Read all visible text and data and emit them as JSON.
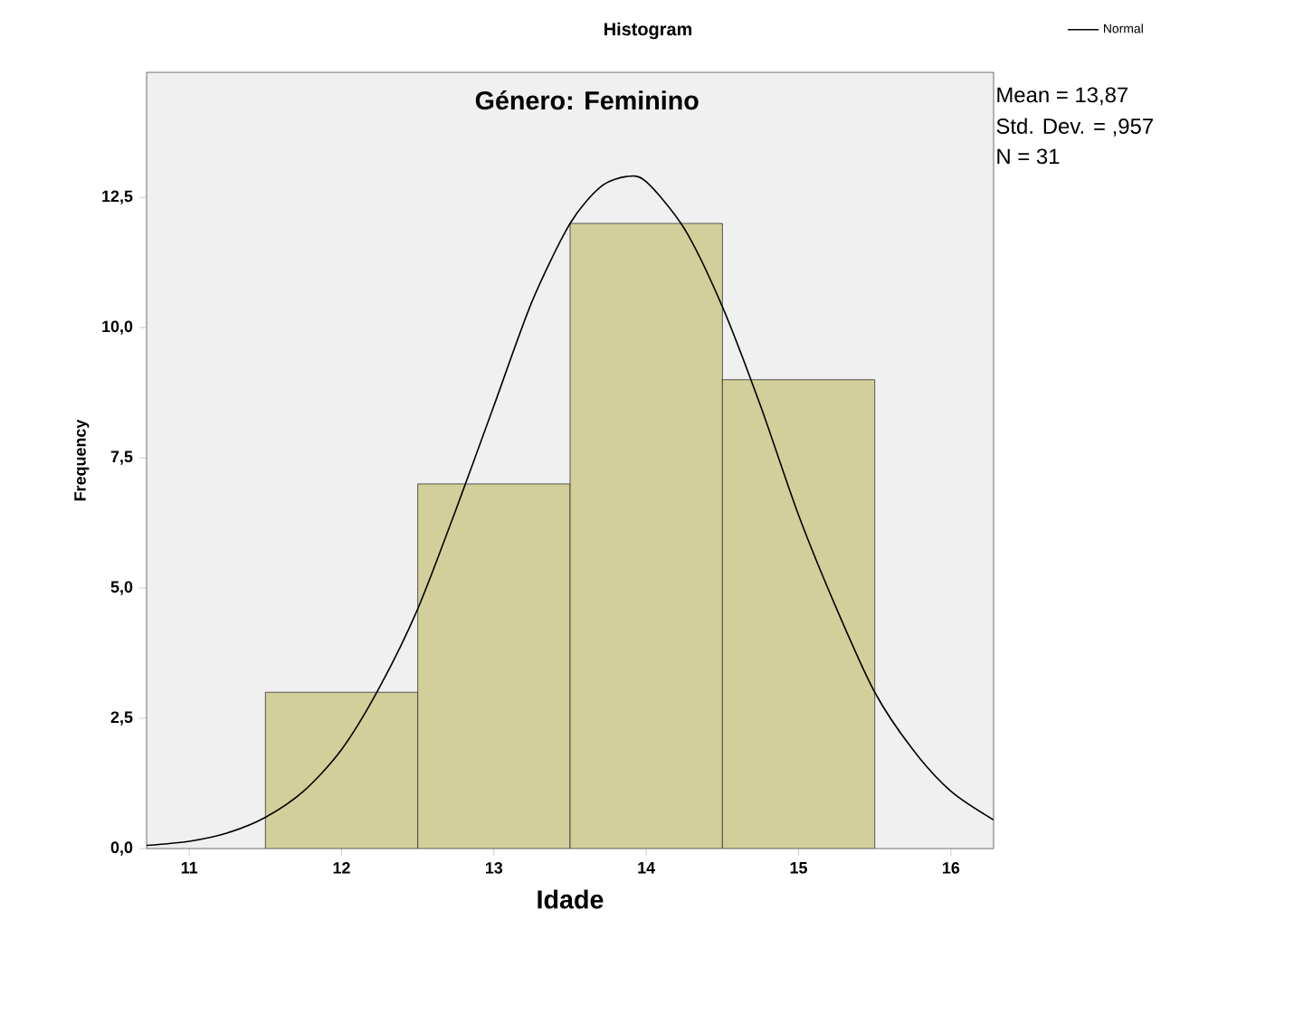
{
  "chart_data": {
    "type": "histogram",
    "title": "Histogram",
    "subtitle": "Género: Feminino",
    "xlabel": "Idade",
    "ylabel": "Frequency",
    "bins": [
      11.5,
      12.5,
      13.5,
      14.5,
      15.5
    ],
    "values": [
      3,
      7,
      12,
      9
    ],
    "color": "#d3cf9a",
    "series": [
      {
        "name": "Normal",
        "type": "line",
        "color": "#000000",
        "x": [
          10.72,
          11,
          11.25,
          11.5,
          11.75,
          12,
          12.25,
          12.5,
          12.75,
          13,
          13.25,
          13.5,
          13.7,
          13.87,
          14,
          14.25,
          14.5,
          14.75,
          15,
          15.25,
          15.5,
          15.75,
          16,
          16.28
        ],
        "values": [
          0.06,
          0.14,
          0.3,
          0.6,
          1.1,
          1.9,
          3.1,
          4.6,
          6.5,
          8.5,
          10.5,
          12.0,
          12.7,
          12.9,
          12.8,
          11.9,
          10.4,
          8.5,
          6.4,
          4.6,
          3.0,
          1.9,
          1.1,
          0.55
        ]
      }
    ],
    "xlim": [
      10.72,
      16.28
    ],
    "ylim": [
      0,
      14.9
    ],
    "xticks": [
      11,
      12,
      13,
      14,
      15,
      16
    ],
    "yticks": [
      {
        "value": 0,
        "label": "0,0"
      },
      {
        "value": 2.5,
        "label": "2,5"
      },
      {
        "value": 5,
        "label": "5,0"
      },
      {
        "value": 7.5,
        "label": "7,5"
      },
      {
        "value": 10,
        "label": "10,0"
      },
      {
        "value": 12.5,
        "label": "12,5"
      }
    ],
    "legend": "top right",
    "grid": false,
    "annotations": [
      "Mean = 13,87",
      "Std. Dev. = ,957",
      "N = 31"
    ]
  }
}
